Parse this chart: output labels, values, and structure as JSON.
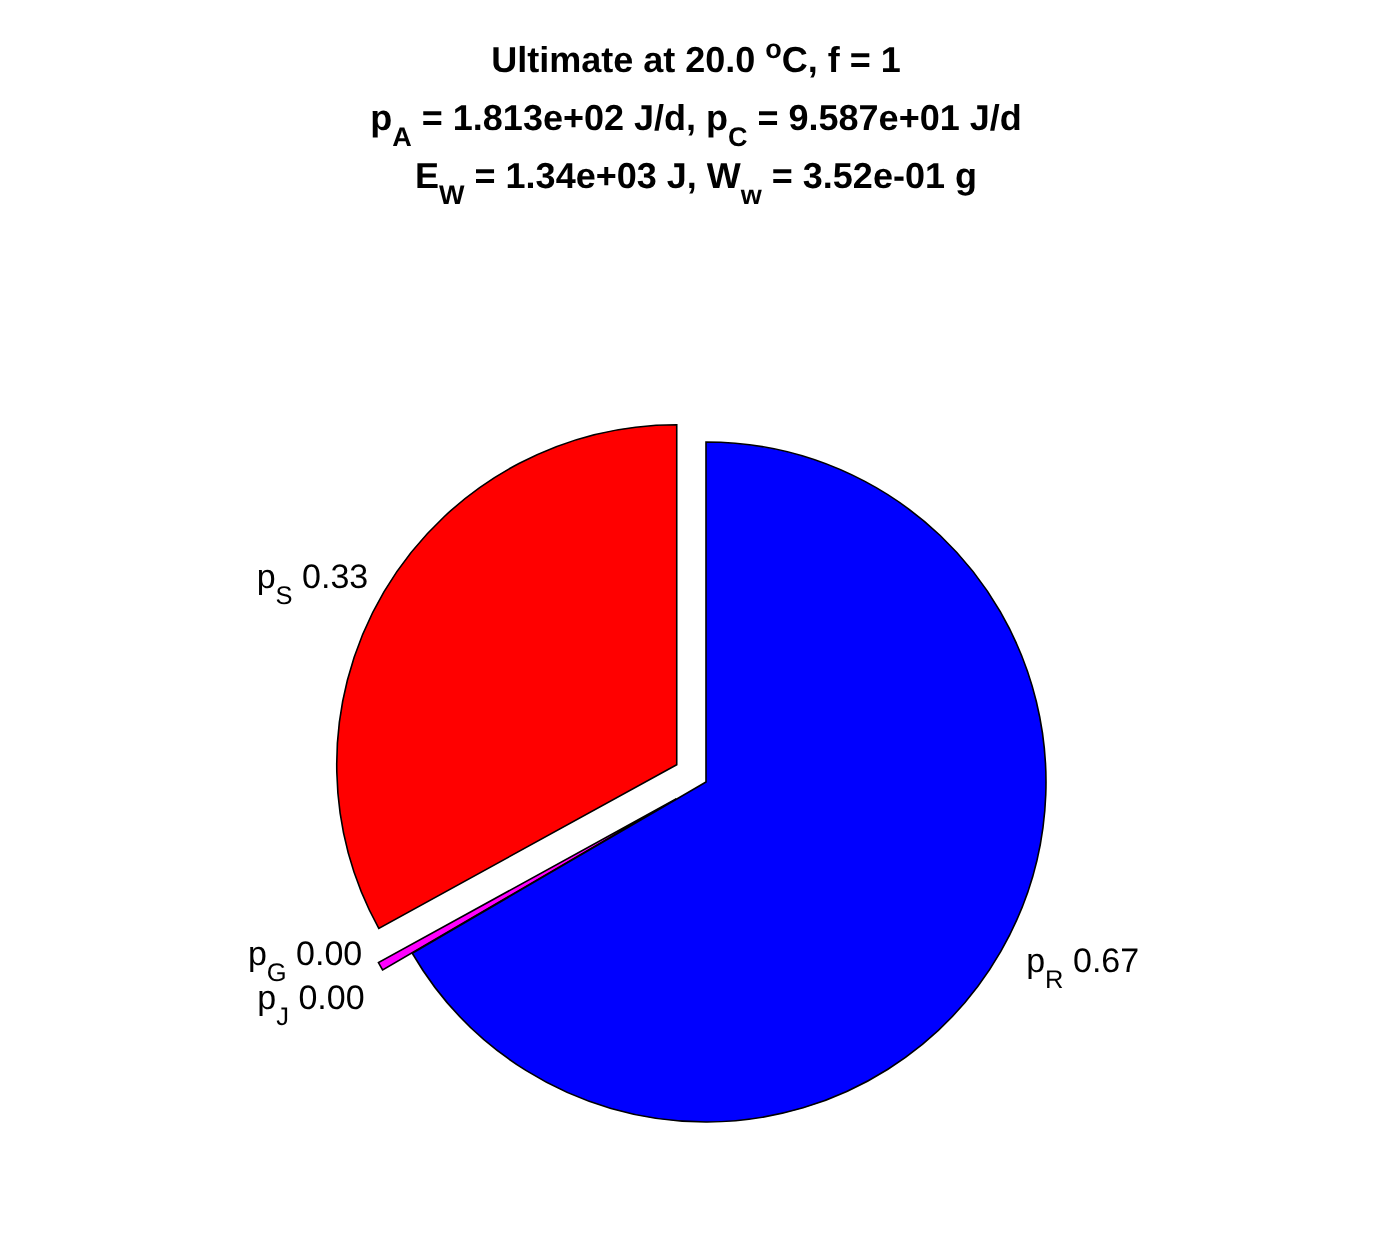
{
  "chart_data": {
    "type": "pie",
    "title": "Ultimate at 20.0 $^{o}$C, f = 1",
    "subtitle": "p$_{A}$ = 1.813e+02 J/d, p$_{C}$ = 9.587e+01 J/d\nE$_{W}$ = 1.34e+03 J, W$_{w}$ = 3.52e-01 g",
    "categories": [
      "p$_{S}$",
      "p$_{G}$",
      "p$_{J}$",
      "p$_{R}$"
    ],
    "values": [
      0.33,
      0,
      0.004,
      0.666
    ],
    "value_labels": [
      "0.33",
      "0.00",
      "0.00",
      "0.67"
    ],
    "colors": [
      "#ff0000",
      "#00ff00",
      "#ff00ff",
      "#0000ff"
    ]
  }
}
